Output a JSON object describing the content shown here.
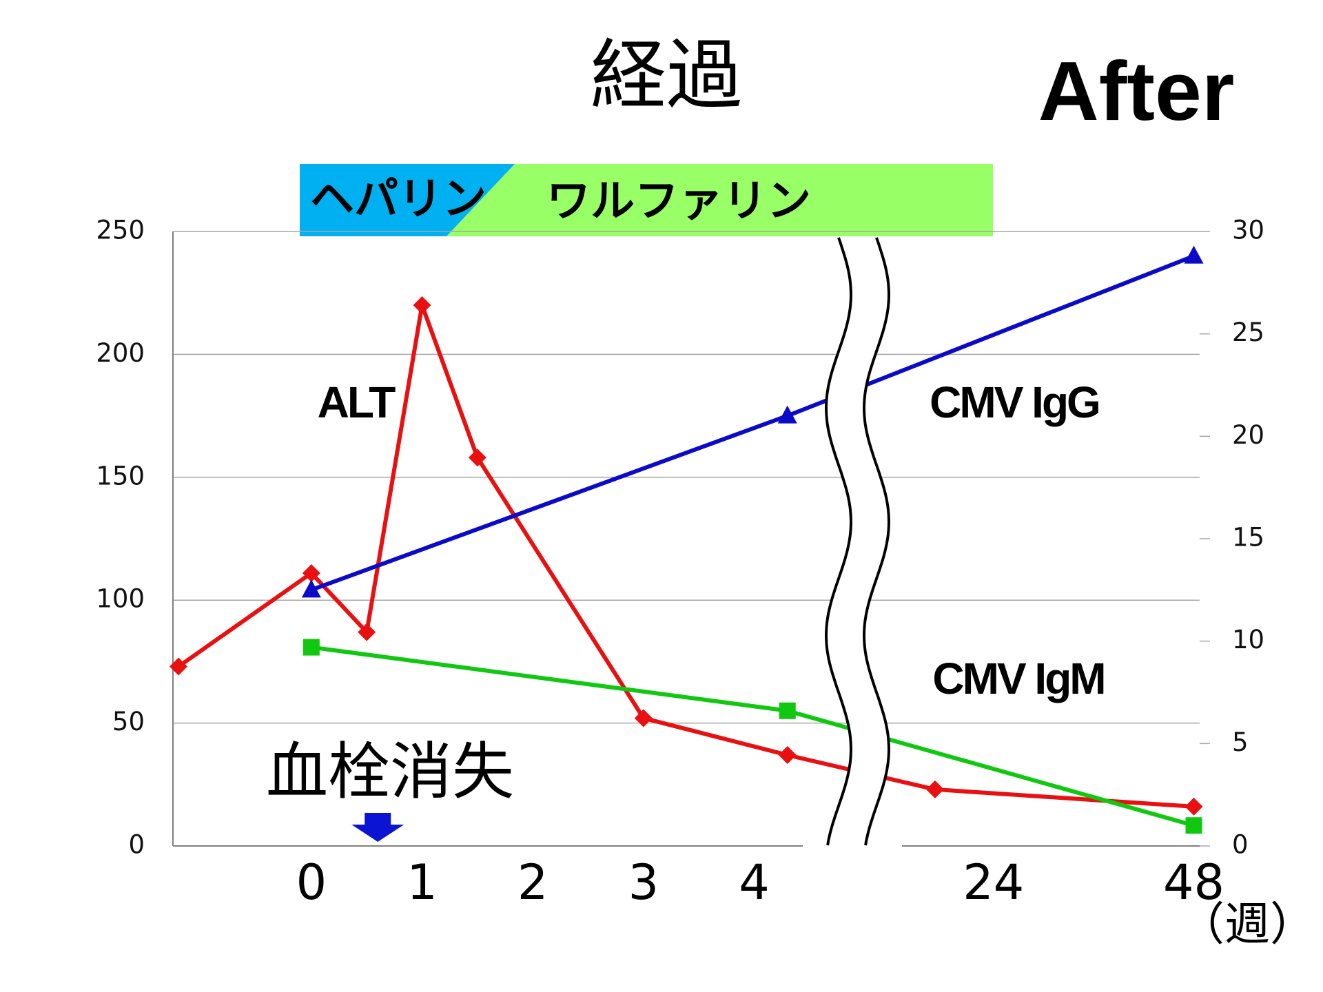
{
  "chart_data": {
    "type": "line",
    "title": "経過",
    "badge": "After",
    "x_label": "（週）",
    "treatments": [
      {
        "label": "ヘパリン",
        "color": "#00b0f0"
      },
      {
        "label": "ワルファリン",
        "color": "#99ff66"
      }
    ],
    "annotation": {
      "text": "血栓消失",
      "x": 0.6,
      "color": "#0a14d2"
    },
    "xlim": [
      -1.25,
      48.7
    ],
    "x_break": [
      4.7,
      9
    ],
    "xticks": [
      0,
      1,
      2,
      3,
      4,
      24,
      48
    ],
    "ylim": [
      0,
      250
    ],
    "yticks": [
      0,
      50,
      100,
      150,
      200,
      250
    ],
    "y2lim": [
      0,
      30
    ],
    "y2ticks": [
      0,
      5,
      10,
      15,
      20,
      25,
      30
    ],
    "grid": true,
    "series": [
      {
        "name": "ALT",
        "color": "#e81010",
        "marker": "diamond",
        "x": [
          -1.2,
          0,
          0.5,
          1,
          1.5,
          3,
          4.3,
          17,
          48
        ],
        "values": [
          73,
          111,
          87,
          220,
          158,
          52,
          37,
          23,
          16
        ]
      },
      {
        "name": "CMV IgG",
        "color": "#0a0ac8",
        "marker": "triangle",
        "axis": "y2",
        "x": [
          0,
          4.3,
          48
        ],
        "values": [
          12.5,
          21,
          28.8
        ]
      },
      {
        "name": "CMV IgM",
        "color": "#10c810",
        "marker": "square",
        "axis": "y2",
        "x": [
          0,
          4.3,
          48
        ],
        "values": [
          9.7,
          6.6,
          1.0
        ]
      }
    ]
  }
}
